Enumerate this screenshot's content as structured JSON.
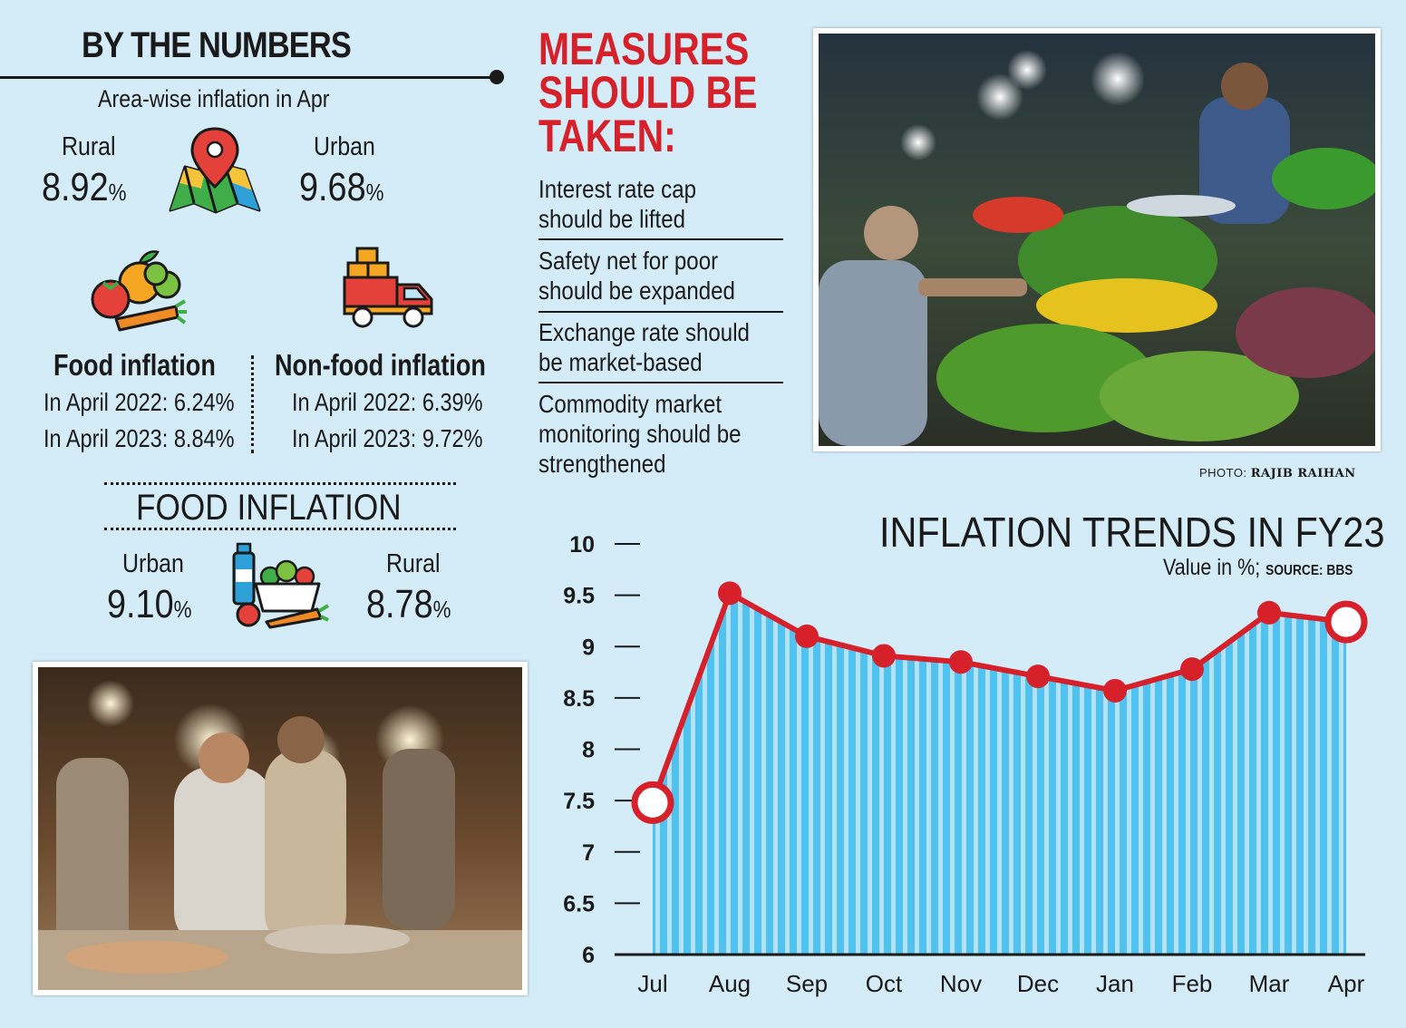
{
  "left": {
    "title": "BY THE NUMBERS",
    "area_subtitle": "Area-wise inflation in Apr",
    "rural_label": "Rural",
    "rural_value": "8.92",
    "urban_label": "Urban",
    "urban_value": "9.68",
    "pct": "%",
    "food": {
      "heading": "Food inflation",
      "line2022": "In April 2022: 6.24%",
      "line2023": "In April 2023: 8.84%"
    },
    "nonfood": {
      "heading": "Non-food inflation",
      "line2022": "In April 2022: 6.39%",
      "line2023": "In April 2023: 9.72%"
    },
    "food_inflation_title": "FOOD INFLATION",
    "food_urban_label": "Urban",
    "food_urban_value": "9.10",
    "food_rural_label": "Rural",
    "food_rural_value": "8.78"
  },
  "measures": {
    "title_lines": [
      "MEASURES",
      "SHOULD BE",
      "TAKEN:"
    ],
    "items": [
      "Interest rate cap should be lifted",
      "Safety net for poor should be expanded",
      "Exchange rate should be market-based",
      "Commodity market monitoring should be strengthened"
    ]
  },
  "photo_credit": {
    "prefix": "PHOTO: ",
    "name": "RAJIB RAIHAN"
  },
  "icons": [
    "map-pin-icon",
    "vegetables-icon",
    "delivery-truck-icon",
    "grocery-basket-icon"
  ],
  "colors": {
    "accent_red": "#d6202a",
    "bar_blue": "#4fc2ef",
    "background": "#d3ecf8"
  },
  "chart_data": {
    "type": "area",
    "title": "INFLATION TRENDS IN FY23",
    "subtitle": "Value in %;",
    "source": "SOURCE: BBS",
    "categories": [
      "Jul",
      "Aug",
      "Sep",
      "Oct",
      "Nov",
      "Dec",
      "Jan",
      "Feb",
      "Mar",
      "Apr"
    ],
    "values": [
      7.48,
      9.52,
      9.1,
      8.91,
      8.85,
      8.71,
      8.57,
      8.78,
      9.33,
      9.24
    ],
    "yticks": [
      6,
      6.5,
      7,
      7.5,
      8,
      8.5,
      9,
      9.5,
      10
    ],
    "ytick_labels": [
      "6",
      "6.5",
      "7",
      "7.5",
      "8",
      "8.5",
      "9",
      "9.5",
      "10"
    ],
    "ylim": [
      6,
      10
    ],
    "grid": false
  }
}
